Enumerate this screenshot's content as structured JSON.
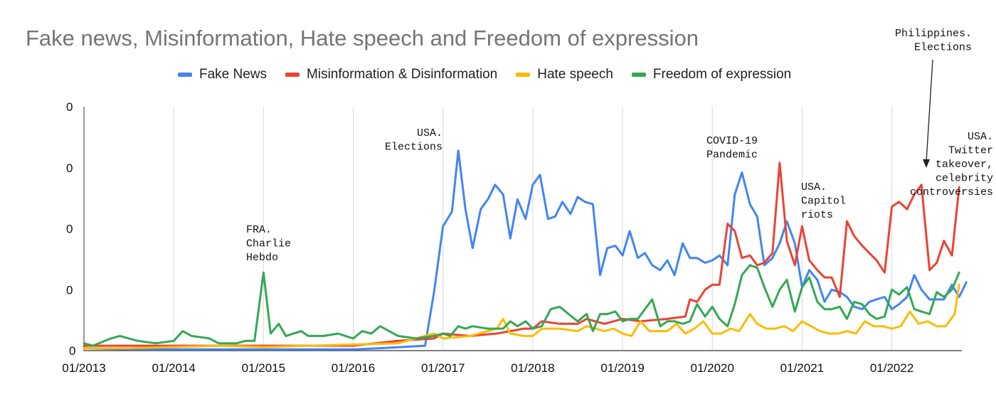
{
  "chart_data": {
    "type": "line",
    "title": "Fake news, Misinformation, Hate speech and Freedom of expression",
    "xlabel": "",
    "ylabel": "",
    "ylim": [
      0,
      100
    ],
    "y_ticks": [
      "0",
      "0",
      "0",
      "0",
      "0"
    ],
    "x_ticks": [
      "01/2013",
      "01/2014",
      "01/2015",
      "01/2016",
      "01/2017",
      "01/2018",
      "01/2019",
      "01/2020",
      "01/2021",
      "01/2022"
    ],
    "legend_position": "top",
    "grid": "vertical",
    "x_start": "2013-01",
    "x_end": "2022-10",
    "series": [
      {
        "name": "Fake News",
        "color": "#4285f4",
        "points": [
          [
            2013.0,
            1
          ],
          [
            2013.5,
            0.5
          ],
          [
            2014.0,
            0.5
          ],
          [
            2014.5,
            0.5
          ],
          [
            2015.0,
            0.5
          ],
          [
            2015.5,
            0.5
          ],
          [
            2016.0,
            0.5
          ],
          [
            2016.3,
            1
          ],
          [
            2016.8,
            2
          ],
          [
            2016.9,
            24
          ],
          [
            2017.0,
            51
          ],
          [
            2017.1,
            57
          ],
          [
            2017.17,
            82
          ],
          [
            2017.25,
            58
          ],
          [
            2017.33,
            42
          ],
          [
            2017.42,
            58
          ],
          [
            2017.5,
            62
          ],
          [
            2017.58,
            68
          ],
          [
            2017.67,
            64
          ],
          [
            2017.75,
            46
          ],
          [
            2017.83,
            62
          ],
          [
            2017.92,
            54
          ],
          [
            2018.0,
            68
          ],
          [
            2018.08,
            72
          ],
          [
            2018.17,
            54
          ],
          [
            2018.25,
            55
          ],
          [
            2018.33,
            61
          ],
          [
            2018.42,
            56
          ],
          [
            2018.5,
            63
          ],
          [
            2018.58,
            61
          ],
          [
            2018.67,
            60
          ],
          [
            2018.75,
            31
          ],
          [
            2018.83,
            42
          ],
          [
            2018.92,
            43
          ],
          [
            2019.0,
            39
          ],
          [
            2019.08,
            49
          ],
          [
            2019.17,
            38
          ],
          [
            2019.25,
            40
          ],
          [
            2019.33,
            35
          ],
          [
            2019.42,
            33
          ],
          [
            2019.5,
            37
          ],
          [
            2019.58,
            31
          ],
          [
            2019.67,
            44
          ],
          [
            2019.75,
            38
          ],
          [
            2019.83,
            38
          ],
          [
            2019.92,
            36
          ],
          [
            2020.0,
            37
          ],
          [
            2020.08,
            39
          ],
          [
            2020.17,
            35
          ],
          [
            2020.25,
            64
          ],
          [
            2020.33,
            73
          ],
          [
            2020.42,
            60
          ],
          [
            2020.5,
            55
          ],
          [
            2020.58,
            35
          ],
          [
            2020.67,
            38
          ],
          [
            2020.75,
            44
          ],
          [
            2020.83,
            53
          ],
          [
            2020.92,
            44
          ],
          [
            2021.0,
            26
          ],
          [
            2021.08,
            33
          ],
          [
            2021.17,
            29
          ],
          [
            2021.25,
            20
          ],
          [
            2021.33,
            25
          ],
          [
            2021.42,
            24
          ],
          [
            2021.5,
            22
          ],
          [
            2021.58,
            18
          ],
          [
            2021.67,
            17
          ],
          [
            2021.75,
            20
          ],
          [
            2021.83,
            21
          ],
          [
            2021.92,
            22
          ],
          [
            2022.0,
            17
          ],
          [
            2022.08,
            19
          ],
          [
            2022.17,
            22
          ],
          [
            2022.25,
            31
          ],
          [
            2022.33,
            25
          ],
          [
            2022.42,
            21
          ],
          [
            2022.5,
            21
          ],
          [
            2022.58,
            21
          ],
          [
            2022.67,
            27
          ],
          [
            2022.75,
            22
          ],
          [
            2022.83,
            28
          ]
        ]
      },
      {
        "name": "Misinformation & Disinformation",
        "color": "#ea4335",
        "points": [
          [
            2013.0,
            2
          ],
          [
            2013.5,
            2
          ],
          [
            2014.0,
            2
          ],
          [
            2014.5,
            2
          ],
          [
            2015.0,
            2
          ],
          [
            2015.5,
            2
          ],
          [
            2016.0,
            2
          ],
          [
            2016.5,
            4
          ],
          [
            2016.9,
            5
          ],
          [
            2017.0,
            7
          ],
          [
            2017.3,
            6
          ],
          [
            2017.6,
            7
          ],
          [
            2017.9,
            9
          ],
          [
            2018.0,
            9
          ],
          [
            2018.1,
            12
          ],
          [
            2018.3,
            11
          ],
          [
            2018.5,
            11
          ],
          [
            2018.6,
            13
          ],
          [
            2018.8,
            11
          ],
          [
            2018.9,
            12
          ],
          [
            2019.0,
            13
          ],
          [
            2019.2,
            12
          ],
          [
            2019.5,
            13
          ],
          [
            2019.7,
            14
          ],
          [
            2019.75,
            21
          ],
          [
            2019.83,
            20
          ],
          [
            2019.92,
            25
          ],
          [
            2020.0,
            27
          ],
          [
            2020.08,
            27
          ],
          [
            2020.17,
            52
          ],
          [
            2020.25,
            49
          ],
          [
            2020.33,
            38
          ],
          [
            2020.42,
            39
          ],
          [
            2020.5,
            35
          ],
          [
            2020.58,
            36
          ],
          [
            2020.67,
            40
          ],
          [
            2020.75,
            77
          ],
          [
            2020.83,
            45
          ],
          [
            2020.92,
            35
          ],
          [
            2021.0,
            51
          ],
          [
            2021.08,
            37
          ],
          [
            2021.17,
            33
          ],
          [
            2021.25,
            30
          ],
          [
            2021.33,
            30
          ],
          [
            2021.42,
            22
          ],
          [
            2021.5,
            53
          ],
          [
            2021.58,
            47
          ],
          [
            2021.67,
            43
          ],
          [
            2021.75,
            40
          ],
          [
            2021.83,
            37
          ],
          [
            2021.92,
            32
          ],
          [
            2022.0,
            59
          ],
          [
            2022.08,
            61
          ],
          [
            2022.17,
            58
          ],
          [
            2022.25,
            64
          ],
          [
            2022.33,
            68
          ],
          [
            2022.42,
            33
          ],
          [
            2022.5,
            36
          ],
          [
            2022.58,
            45
          ],
          [
            2022.67,
            39
          ],
          [
            2022.75,
            67
          ]
        ]
      },
      {
        "name": "Hate speech",
        "color": "#fbbc04",
        "points": [
          [
            2013.0,
            1
          ],
          [
            2013.5,
            1
          ],
          [
            2014.0,
            1.5
          ],
          [
            2014.5,
            2
          ],
          [
            2015.0,
            1.5
          ],
          [
            2015.5,
            2
          ],
          [
            2016.0,
            2.5
          ],
          [
            2016.5,
            3
          ],
          [
            2016.9,
            7
          ],
          [
            2017.0,
            5
          ],
          [
            2017.3,
            6
          ],
          [
            2017.6,
            9
          ],
          [
            2017.67,
            13
          ],
          [
            2017.75,
            7
          ],
          [
            2017.9,
            6
          ],
          [
            2018.0,
            6
          ],
          [
            2018.1,
            9
          ],
          [
            2018.3,
            9
          ],
          [
            2018.5,
            8
          ],
          [
            2018.6,
            10
          ],
          [
            2018.8,
            8
          ],
          [
            2018.9,
            9
          ],
          [
            2019.0,
            7
          ],
          [
            2019.1,
            6
          ],
          [
            2019.2,
            12
          ],
          [
            2019.3,
            8
          ],
          [
            2019.5,
            8
          ],
          [
            2019.6,
            11
          ],
          [
            2019.7,
            7
          ],
          [
            2019.8,
            9
          ],
          [
            2019.9,
            12
          ],
          [
            2020.0,
            7
          ],
          [
            2020.1,
            7
          ],
          [
            2020.2,
            9
          ],
          [
            2020.3,
            8
          ],
          [
            2020.42,
            15
          ],
          [
            2020.5,
            11
          ],
          [
            2020.6,
            9
          ],
          [
            2020.7,
            9
          ],
          [
            2020.8,
            10
          ],
          [
            2020.9,
            8
          ],
          [
            2021.0,
            12
          ],
          [
            2021.1,
            10
          ],
          [
            2021.2,
            8
          ],
          [
            2021.3,
            7
          ],
          [
            2021.4,
            7
          ],
          [
            2021.5,
            8
          ],
          [
            2021.6,
            7
          ],
          [
            2021.7,
            12
          ],
          [
            2021.8,
            10
          ],
          [
            2021.9,
            10
          ],
          [
            2022.0,
            9
          ],
          [
            2022.1,
            10
          ],
          [
            2022.2,
            16
          ],
          [
            2022.3,
            11
          ],
          [
            2022.4,
            12
          ],
          [
            2022.5,
            10
          ],
          [
            2022.6,
            10
          ],
          [
            2022.7,
            15
          ],
          [
            2022.75,
            27
          ]
        ]
      },
      {
        "name": "Freedom of expression",
        "color": "#34a853",
        "points": [
          [
            2013.0,
            3
          ],
          [
            2013.1,
            2
          ],
          [
            2013.3,
            5
          ],
          [
            2013.4,
            6
          ],
          [
            2013.6,
            4
          ],
          [
            2013.8,
            3
          ],
          [
            2014.0,
            4
          ],
          [
            2014.1,
            8
          ],
          [
            2014.2,
            6
          ],
          [
            2014.4,
            5
          ],
          [
            2014.5,
            3
          ],
          [
            2014.7,
            3
          ],
          [
            2014.8,
            4
          ],
          [
            2014.9,
            4
          ],
          [
            2015.0,
            32
          ],
          [
            2015.08,
            7
          ],
          [
            2015.17,
            11
          ],
          [
            2015.25,
            6
          ],
          [
            2015.42,
            8
          ],
          [
            2015.5,
            6
          ],
          [
            2015.67,
            6
          ],
          [
            2015.83,
            7
          ],
          [
            2016.0,
            5
          ],
          [
            2016.1,
            8
          ],
          [
            2016.2,
            7
          ],
          [
            2016.3,
            10
          ],
          [
            2016.5,
            6
          ],
          [
            2016.7,
            5
          ],
          [
            2016.9,
            6
          ],
          [
            2017.0,
            7
          ],
          [
            2017.08,
            6
          ],
          [
            2017.17,
            10
          ],
          [
            2017.25,
            9
          ],
          [
            2017.33,
            10
          ],
          [
            2017.5,
            9
          ],
          [
            2017.67,
            9
          ],
          [
            2017.75,
            12
          ],
          [
            2017.83,
            10
          ],
          [
            2017.92,
            12
          ],
          [
            2018.0,
            9
          ],
          [
            2018.1,
            10
          ],
          [
            2018.2,
            17
          ],
          [
            2018.3,
            18
          ],
          [
            2018.4,
            15
          ],
          [
            2018.5,
            12
          ],
          [
            2018.6,
            15
          ],
          [
            2018.67,
            8
          ],
          [
            2018.75,
            15
          ],
          [
            2018.83,
            15
          ],
          [
            2018.92,
            16
          ],
          [
            2019.0,
            12
          ],
          [
            2019.08,
            13
          ],
          [
            2019.17,
            13
          ],
          [
            2019.25,
            17
          ],
          [
            2019.33,
            21
          ],
          [
            2019.42,
            10
          ],
          [
            2019.5,
            12
          ],
          [
            2019.58,
            12
          ],
          [
            2019.67,
            11
          ],
          [
            2019.75,
            12
          ],
          [
            2019.83,
            19
          ],
          [
            2019.92,
            14
          ],
          [
            2020.0,
            18
          ],
          [
            2020.08,
            13
          ],
          [
            2020.17,
            10
          ],
          [
            2020.25,
            19
          ],
          [
            2020.33,
            31
          ],
          [
            2020.42,
            35
          ],
          [
            2020.5,
            34
          ],
          [
            2020.58,
            26
          ],
          [
            2020.67,
            18
          ],
          [
            2020.75,
            25
          ],
          [
            2020.83,
            29
          ],
          [
            2020.92,
            16
          ],
          [
            2021.0,
            26
          ],
          [
            2021.08,
            30
          ],
          [
            2021.17,
            20
          ],
          [
            2021.25,
            17
          ],
          [
            2021.33,
            17
          ],
          [
            2021.42,
            18
          ],
          [
            2021.5,
            13
          ],
          [
            2021.58,
            20
          ],
          [
            2021.67,
            19
          ],
          [
            2021.75,
            15
          ],
          [
            2021.83,
            13
          ],
          [
            2021.92,
            14
          ],
          [
            2022.0,
            25
          ],
          [
            2022.08,
            23
          ],
          [
            2022.17,
            26
          ],
          [
            2022.25,
            17
          ],
          [
            2022.33,
            16
          ],
          [
            2022.42,
            15
          ],
          [
            2022.5,
            24
          ],
          [
            2022.58,
            22
          ],
          [
            2022.67,
            25
          ],
          [
            2022.75,
            32
          ]
        ]
      }
    ],
    "annotations": [
      {
        "text": "FRA.\nCharlie\nHebdo",
        "x": 2015.0
      },
      {
        "text": "USA.\nElections",
        "x": 2017.0
      },
      {
        "text": "COVID-19\nPandemic",
        "x": 2020.3
      },
      {
        "text": "USA.\nCapitol\nriots",
        "x": 2021.0
      },
      {
        "text": "Philippines.\nElections",
        "x": 2022.4
      },
      {
        "text": "USA.\nTwitter\ntakeover,\ncelebrity\ncontroversies",
        "x": 2022.75
      }
    ]
  }
}
